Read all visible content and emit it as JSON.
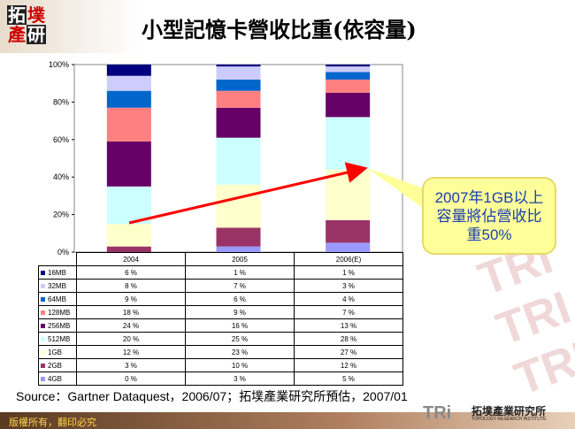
{
  "logo": {
    "chars": [
      "拓",
      "墣",
      "產",
      "研"
    ]
  },
  "title": "小型記憶卡營收比重(依容量)",
  "callout": "2007年1GB以上容量將佔營收比重50%",
  "source": "Source：Gartner Dataquest，2006/07；拓墣產業研究所預估，2007/01",
  "footer": "版權所有，翻印必究",
  "brand": {
    "mark": "TRi",
    "name": "拓墣產業研究所",
    "sub": "TOPOLOGY RESEARCH INSTITUTE"
  },
  "chart_data": {
    "type": "bar",
    "stacked": true,
    "percent": true,
    "categories": [
      "2004",
      "2005",
      "2006(E)"
    ],
    "ylim": [
      0,
      100
    ],
    "yticks": [
      "0%",
      "20%",
      "40%",
      "60%",
      "80%",
      "100%"
    ],
    "series": [
      {
        "name": "16MB",
        "color": "#000080",
        "values": [
          6,
          1,
          1
        ]
      },
      {
        "name": "32MB",
        "color": "#ccccff",
        "values": [
          8,
          7,
          3
        ]
      },
      {
        "name": "64MB",
        "color": "#0066cc",
        "values": [
          9,
          6,
          4
        ]
      },
      {
        "name": "128MB",
        "color": "#ff8080",
        "values": [
          18,
          9,
          7
        ]
      },
      {
        "name": "256MB",
        "color": "#660066",
        "values": [
          24,
          16,
          13
        ]
      },
      {
        "name": "512MB",
        "color": "#ccffff",
        "values": [
          20,
          25,
          28
        ]
      },
      {
        "name": "1GB",
        "color": "#ffffcc",
        "values": [
          12,
          23,
          27
        ]
      },
      {
        "name": "2GB",
        "color": "#993366",
        "values": [
          3,
          10,
          12
        ]
      },
      {
        "name": "4GB",
        "color": "#9999ff",
        "values": [
          0,
          3,
          5
        ]
      }
    ],
    "data_table": true
  }
}
